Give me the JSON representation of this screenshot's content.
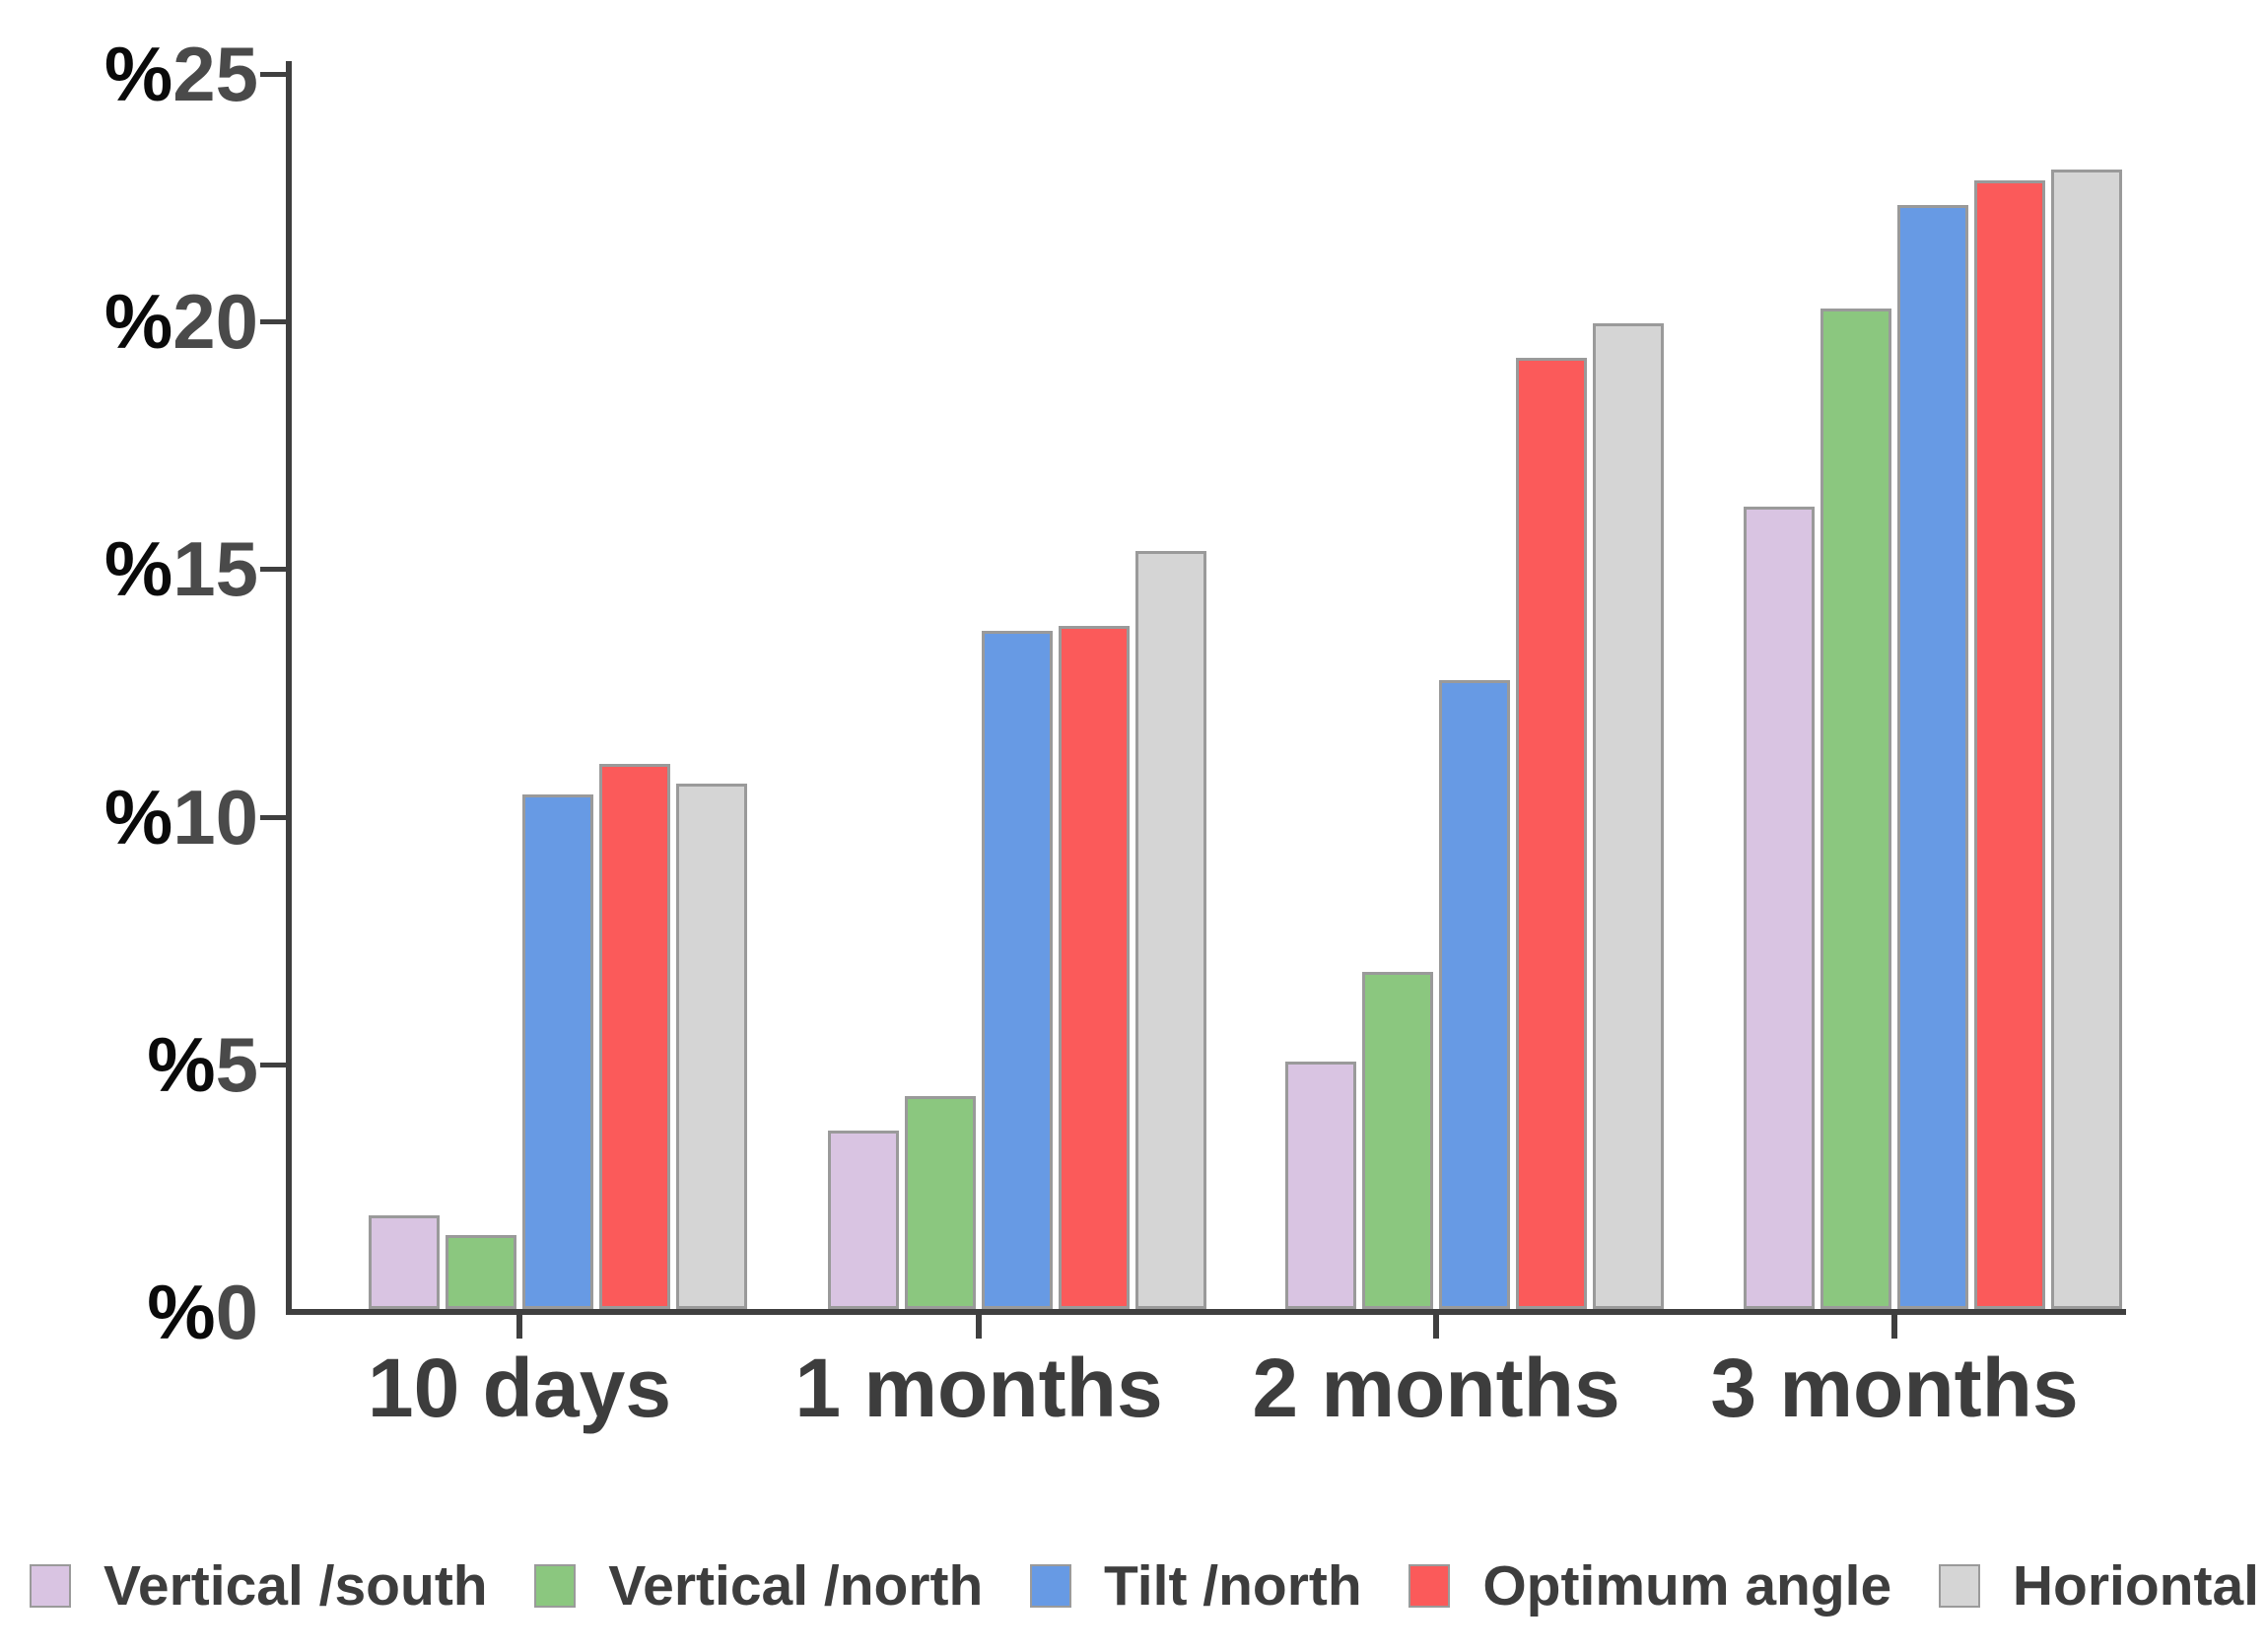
{
  "chart_data": {
    "type": "bar",
    "title": "",
    "xlabel": "",
    "ylabel": "",
    "categories": [
      "10 days",
      "1 months",
      "2 months",
      "3 months"
    ],
    "series": [
      {
        "name": "Vertical /south",
        "color": "#d9c4e2",
        "values": [
          1.9,
          3.6,
          5.0,
          16.2
        ]
      },
      {
        "name": "Vertical /north",
        "color": "#8bc77f",
        "values": [
          1.5,
          4.3,
          6.8,
          20.2
        ]
      },
      {
        "name": "Tilt /north",
        "color": "#679ae4",
        "values": [
          10.4,
          13.7,
          12.7,
          22.3
        ]
      },
      {
        "name": "Optimum angle",
        "color": "#fb5a5a",
        "values": [
          11.0,
          13.8,
          19.2,
          22.8
        ]
      },
      {
        "name": "Horiontal",
        "color": "#d5d5d5",
        "values": [
          10.6,
          15.3,
          19.9,
          23.0
        ]
      }
    ],
    "y_axis": {
      "tick_prefix": "%",
      "ticks": [
        0,
        5,
        10,
        15,
        20,
        25
      ],
      "range": [
        0,
        25
      ]
    },
    "grid": false,
    "legend_position": "bottom"
  },
  "colors": {
    "background": "#ffffff",
    "axis": "#3f3f3f",
    "y_label_prefix": "#0a0a0a",
    "y_label_number": "#4a4a4a",
    "x_label_text": "#3d3d3d",
    "legend_text": "#3d3d3d",
    "bar_border": "#9a9a9a"
  }
}
